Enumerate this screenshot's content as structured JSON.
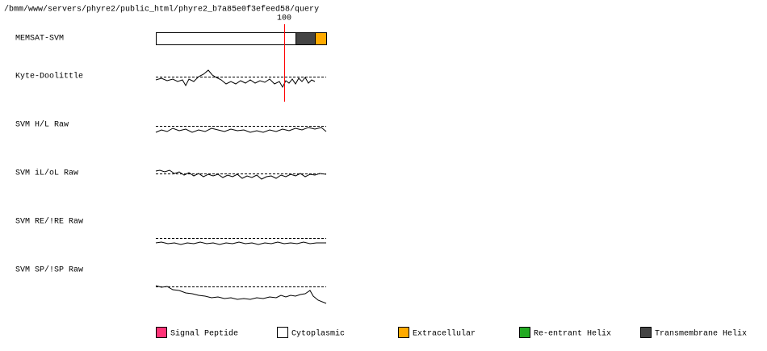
{
  "path": "/bmm/www/servers/phyre2/public_html/phyre2_b7a85e0f3efeed58/query",
  "marker": 100,
  "tracks": [
    "MEMSAT-SVM",
    "Kyte-Doolittle",
    "SVM H/L Raw",
    "SVM iL/oL Raw",
    "SVM RE/!RE Raw",
    "SVM SP/!SP Raw"
  ],
  "legend": [
    "Signal Peptide",
    "Cytoplasmic",
    "Extracellular",
    "Re-entrant Helix",
    "Transmembrane Helix"
  ]
}
